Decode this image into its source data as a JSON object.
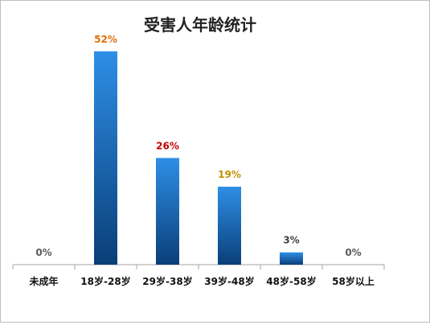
{
  "chart_data": {
    "type": "bar",
    "title": "受害人年龄统计",
    "categories": [
      "未成年",
      "18岁-28岁",
      "29岁-38岁",
      "39岁-48岁",
      "48岁-58岁",
      "58岁以上"
    ],
    "values": [
      0,
      52,
      26,
      19,
      3,
      0
    ],
    "data_labels": [
      "0%",
      "52%",
      "26%",
      "19%",
      "3%",
      "0%"
    ],
    "label_colors": [
      "#595959",
      "#e36c09",
      "#c00000",
      "#c09100",
      "#404040",
      "#595959"
    ],
    "bar_color_top": "#2e8ee6",
    "bar_color_bottom": "#0a3f78",
    "axis_color": "#a6a6a6",
    "ylim": [
      0,
      60
    ],
    "grid": false,
    "legend": "none",
    "xlabel": "",
    "ylabel": ""
  }
}
